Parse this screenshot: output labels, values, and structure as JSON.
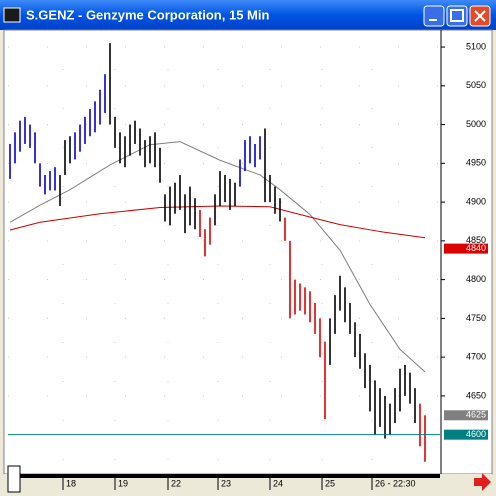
{
  "window": {
    "title": "S.GENZ - Genzyme Corporation, 15 Min"
  },
  "chart_data": {
    "type": "ohlc",
    "xlim": [
      -0.4,
      86
    ],
    "ylim": [
      4557,
      5122
    ],
    "yticks": [
      4650,
      4700,
      4750,
      4800,
      4850,
      4900,
      4950,
      5000,
      5050,
      5100
    ],
    "xticks": [
      {
        "value": 10.6,
        "label": "18"
      },
      {
        "value": 21,
        "label": "19"
      },
      {
        "value": 31.6,
        "label": "22"
      },
      {
        "value": 41.6,
        "label": "23"
      },
      {
        "value": 52,
        "label": "24"
      },
      {
        "value": 62.4,
        "label": "25"
      },
      {
        "value": 72.4,
        "label": "26 - 22:30"
      }
    ],
    "grid": true,
    "series": [
      {
        "color": "#0000cc",
        "x": [
          0,
          1,
          2,
          3,
          4,
          5,
          6,
          7,
          8,
          9,
          13,
          14,
          15,
          16,
          17,
          18,
          19,
          46,
          47,
          48,
          49,
          50
        ],
        "high": [
          4975,
          4990,
          5005,
          5010,
          5000,
          4990,
          4950,
          4935,
          4940,
          4945,
          4990,
          5000,
          5010,
          5020,
          5030,
          5045,
          5065,
          4955,
          4980,
          4985,
          4975,
          4985
        ],
        "low": [
          4930,
          4950,
          4965,
          4975,
          4970,
          4950,
          4920,
          4910,
          4915,
          4915,
          4955,
          4965,
          4975,
          4985,
          4990,
          5000,
          5015,
          4920,
          4940,
          4950,
          4945,
          4955
        ]
      },
      {
        "color": "#000000",
        "x": [
          10,
          11,
          12,
          20,
          21,
          22,
          23,
          24,
          25,
          26,
          27,
          28,
          29,
          30,
          31,
          32,
          33,
          34,
          35,
          36,
          37,
          41,
          42,
          43,
          44,
          45,
          51,
          52,
          53,
          54,
          64,
          65,
          66,
          67,
          68,
          69,
          70,
          71,
          72,
          73,
          74,
          75,
          76,
          77,
          78,
          79,
          80,
          81
        ],
        "high": [
          4935,
          4980,
          4985,
          5105,
          5010,
          4990,
          4985,
          5000,
          5005,
          4995,
          4980,
          4985,
          4990,
          4970,
          4910,
          4920,
          4925,
          4935,
          4910,
          4920,
          4905,
          4910,
          4940,
          4935,
          4930,
          4925,
          4995,
          4935,
          4920,
          4905,
          4750,
          4780,
          4805,
          4790,
          4770,
          4745,
          4730,
          4705,
          4690,
          4670,
          4660,
          4650,
          4640,
          4660,
          4685,
          4690,
          4680,
          4660
        ],
        "low": [
          4895,
          4935,
          4950,
          5000,
          4970,
          4950,
          4945,
          4960,
          4975,
          4960,
          4945,
          4950,
          4945,
          4925,
          4875,
          4870,
          4885,
          4890,
          4860,
          4870,
          4865,
          4870,
          4895,
          4900,
          4890,
          4895,
          4900,
          4900,
          4885,
          4875,
          4690,
          4730,
          4760,
          4745,
          4730,
          4700,
          4685,
          4660,
          4630,
          4600,
          4610,
          4595,
          4600,
          4615,
          4630,
          4650,
          4640,
          4615
        ]
      },
      {
        "color": "#dd0000",
        "x": [
          38,
          39,
          40,
          55,
          56,
          57,
          58,
          59,
          60,
          61,
          62,
          63,
          82,
          83
        ],
        "high": [
          4890,
          4865,
          4880,
          4880,
          4850,
          4800,
          4795,
          4790,
          4785,
          4770,
          4750,
          4720,
          4640,
          4625
        ],
        "low": [
          4855,
          4830,
          4845,
          4850,
          4750,
          4755,
          4760,
          4755,
          4745,
          4730,
          4700,
          4620,
          4585,
          4565
        ]
      }
    ],
    "averages": [
      {
        "color": "#808080",
        "x": [
          0,
          6,
          12,
          20,
          28,
          34,
          42,
          50,
          54,
          60,
          66,
          72,
          78,
          83
        ],
        "values": [
          4874,
          4896,
          4916,
          4948,
          4974,
          4978,
          4954,
          4935,
          4916,
          4884,
          4838,
          4768,
          4710,
          4681
        ]
      },
      {
        "color": "#cc0000",
        "x": [
          0,
          6,
          18,
          30,
          42,
          52,
          58,
          66,
          74,
          83
        ],
        "values": [
          4864,
          4874,
          4885,
          4893,
          4895,
          4894,
          4884,
          4871,
          4862,
          4854
        ]
      }
    ],
    "markers": [
      {
        "value": 4840,
        "color": "#dd0000"
      },
      {
        "value": 4625,
        "color": "#808080"
      },
      {
        "value": 4600,
        "color": "#008080"
      }
    ]
  }
}
